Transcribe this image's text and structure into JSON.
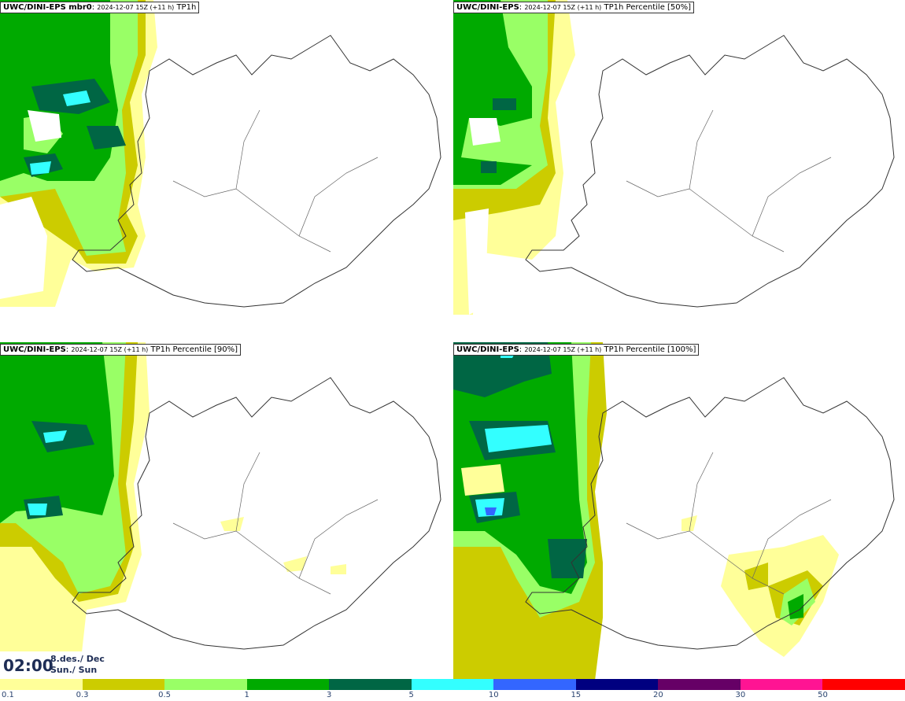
{
  "panels": [
    {
      "model": "UWC/DINI-EPS mbr0",
      "run": "2024-12-07 15Z (+11 h)",
      "field": "TP1h"
    },
    {
      "model": "UWC/DINI-EPS",
      "run": "2024-12-07 15Z (+11 h)",
      "field": "TP1h Percentile [50%]"
    },
    {
      "model": "UWC/DINI-EPS",
      "run": "2024-12-07 15Z (+11 h)",
      "field": "TP1h Percentile [90%]"
    },
    {
      "model": "UWC/DINI-EPS",
      "run": "2024-12-07 15Z (+11 h)",
      "field": "TP1h Percentile [100%]"
    }
  ],
  "valid_time": {
    "time": "02:00",
    "date_line1": "8.des./ Dec",
    "date_line2": "Sun./ Sun"
  },
  "legend": {
    "ticks": [
      "0.1",
      "0.3",
      "0.5",
      "1",
      "3",
      "5",
      "10",
      "15",
      "20",
      "30",
      "50"
    ],
    "colors": [
      "#ffff99",
      "#cccc00",
      "#99ff66",
      "#00aa00",
      "#006644",
      "#33ffff",
      "#3366ff",
      "#000080",
      "#660066",
      "#ff1493",
      "#ff0000"
    ]
  }
}
